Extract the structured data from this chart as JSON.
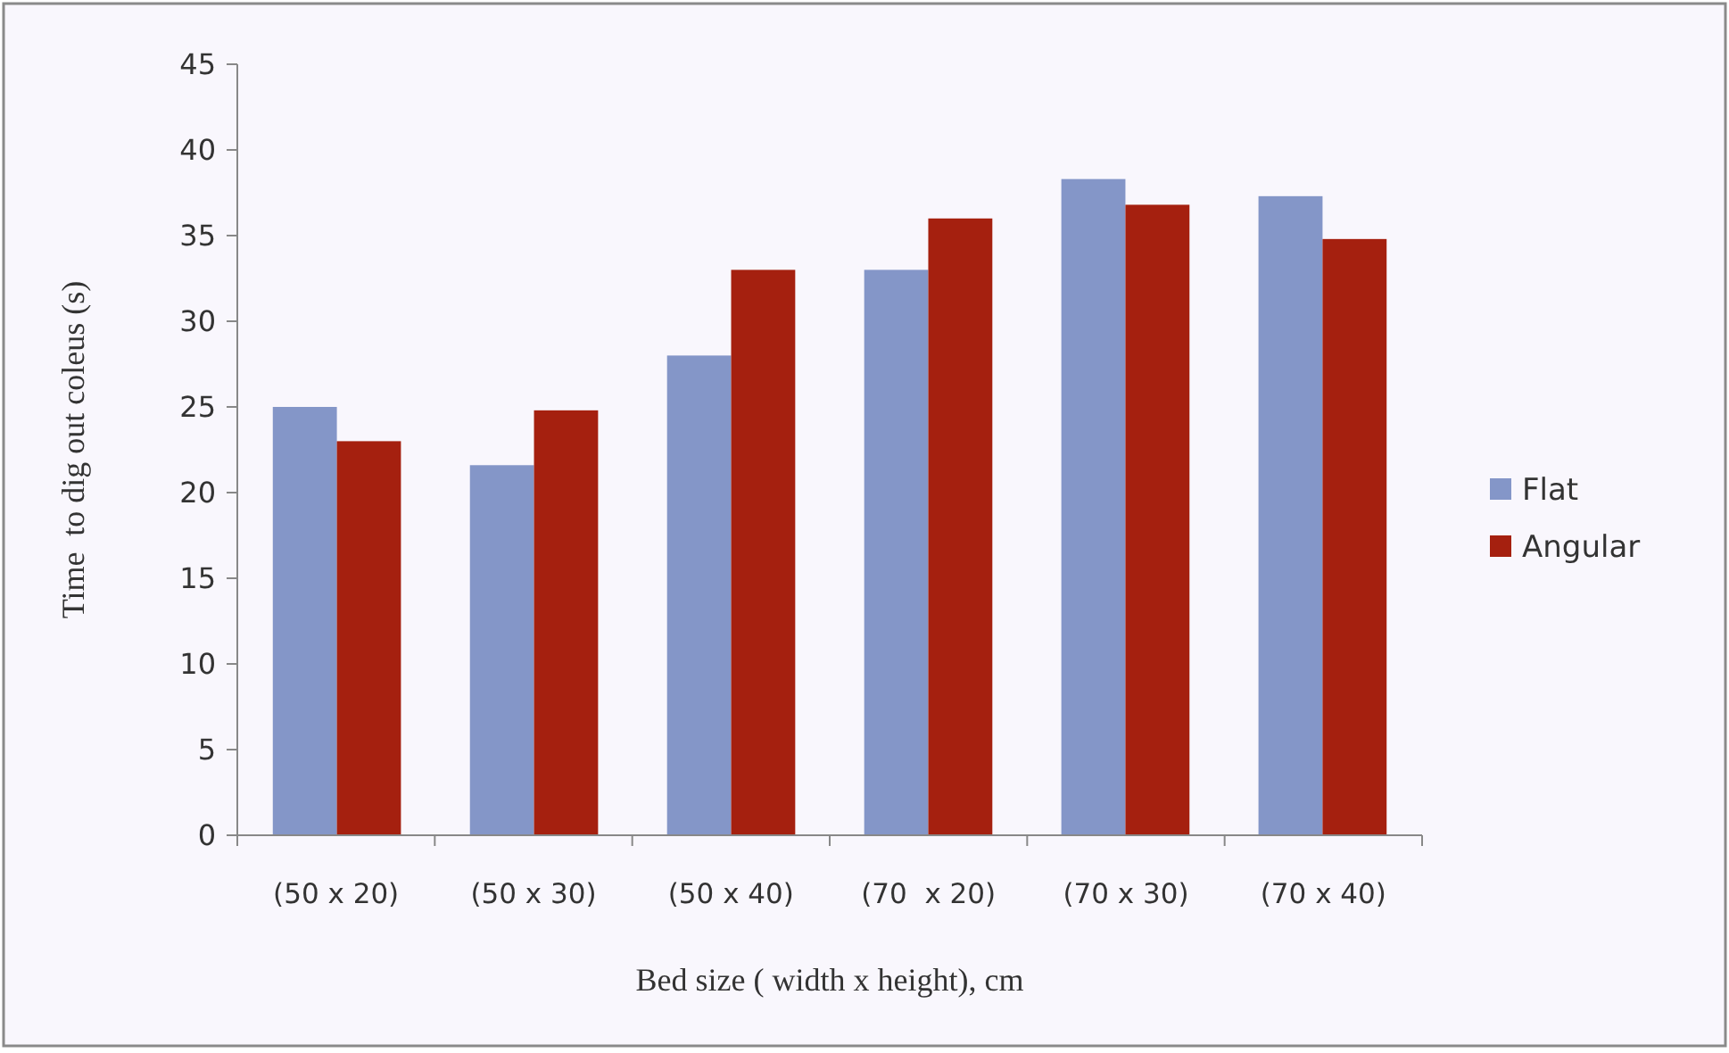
{
  "chart_data": {
    "type": "bar",
    "xlabel": "Bed size ( width x height), cm",
    "ylabel": "Time  to dig out coleus (s)",
    "categories": [
      "(50 x 20)",
      "(50 x 30)",
      "(50 x 40)",
      "(70  x 20)",
      "(70 x 30)",
      "(70 x 40)"
    ],
    "series": [
      {
        "name": "Flat",
        "color": "#8496c8",
        "values": [
          25,
          21.6,
          28,
          33,
          38.3,
          37.3
        ]
      },
      {
        "name": "Angular",
        "color": "#a5200f",
        "values": [
          23,
          24.8,
          33,
          36,
          36.8,
          34.8
        ]
      }
    ],
    "ylim": [
      0,
      45
    ],
    "yticks": [
      0,
      5,
      10,
      15,
      20,
      25,
      30,
      35,
      40,
      45
    ],
    "grid": false,
    "legend": "right"
  }
}
